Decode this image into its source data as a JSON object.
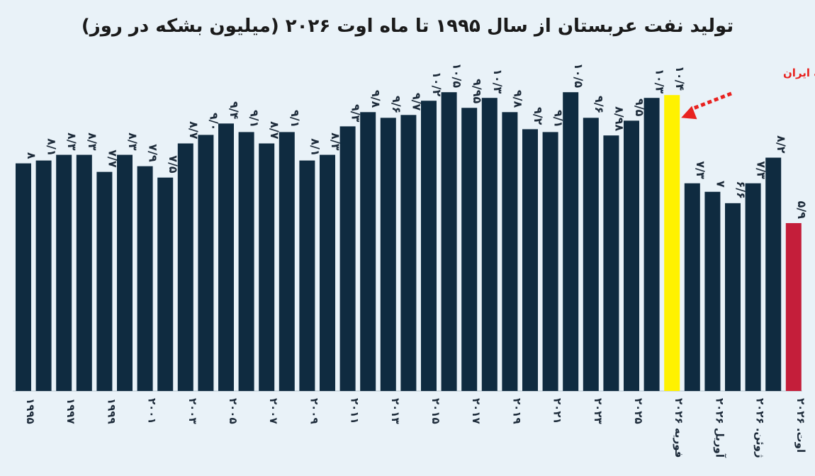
{
  "chart_data": {
    "type": "bar",
    "title": "تولید نفت عربستان از سال ۱۹۹۵ تا ماه اوت ۲۰۲۶ (میلیون بشکه در روز)",
    "xlabel": "",
    "ylabel": "",
    "ylim": [
      0,
      11
    ],
    "grid": false,
    "colors": {
      "default": "#0f2b40",
      "highlight": "#fff200",
      "latest": "#c41e3a"
    },
    "categories": [
      {
        "x": "۱۹۹۵",
        "value": 8.0,
        "value_label": "۸",
        "axis_label": "۱۹۹۵",
        "color_role": "default"
      },
      {
        "x": "1996",
        "value": 8.1,
        "value_label": "۸/۱",
        "axis_label": "",
        "color_role": "default"
      },
      {
        "x": "۱۹۹۷",
        "value": 8.3,
        "value_label": "۸/۳",
        "axis_label": "۱۹۹۷",
        "color_role": "default"
      },
      {
        "x": "1998",
        "value": 8.3,
        "value_label": "۸/۳",
        "axis_label": "",
        "color_role": "default"
      },
      {
        "x": "۱۹۹۹",
        "value": 7.7,
        "value_label": "۷/۷",
        "axis_label": "۱۹۹۹",
        "color_role": "default"
      },
      {
        "x": "2000",
        "value": 8.3,
        "value_label": "۸/۳",
        "axis_label": "",
        "color_role": "default"
      },
      {
        "x": "۲۰۰۱",
        "value": 7.9,
        "value_label": "۷/۹",
        "axis_label": "۲۰۰۱",
        "color_role": "default"
      },
      {
        "x": "2002",
        "value": 7.5,
        "value_label": "۷/۵",
        "axis_label": "",
        "color_role": "default"
      },
      {
        "x": "۲۰۰۳",
        "value": 8.7,
        "value_label": "۸/۷",
        "axis_label": "۲۰۰۳",
        "color_role": "default"
      },
      {
        "x": "2004",
        "value": 9.0,
        "value_label": "۹/۰",
        "axis_label": "",
        "color_role": "default"
      },
      {
        "x": "۲۰۰۵",
        "value": 9.4,
        "value_label": "۹/۴",
        "axis_label": "۲۰۰۵",
        "color_role": "default"
      },
      {
        "x": "2006",
        "value": 9.1,
        "value_label": "۹/۱",
        "axis_label": "",
        "color_role": "default"
      },
      {
        "x": "۲۰۰۷",
        "value": 8.7,
        "value_label": "۸/۷",
        "axis_label": "۲۰۰۷",
        "color_role": "default"
      },
      {
        "x": "2008",
        "value": 9.1,
        "value_label": "۹/۱",
        "axis_label": "",
        "color_role": "default"
      },
      {
        "x": "۲۰۰۹",
        "value": 8.1,
        "value_label": "۸/۱",
        "axis_label": "۲۰۰۹",
        "color_role": "default"
      },
      {
        "x": "2010",
        "value": 8.3,
        "value_label": "۸/۳",
        "axis_label": "",
        "color_role": "default"
      },
      {
        "x": "۲۰۱۱",
        "value": 9.3,
        "value_label": "۹/۳",
        "axis_label": "۲۰۱۱",
        "color_role": "default"
      },
      {
        "x": "2012",
        "value": 9.8,
        "value_label": "۹/۸",
        "axis_label": "",
        "color_role": "default"
      },
      {
        "x": "۲۰۱۳",
        "value": 9.6,
        "value_label": "۹/۶",
        "axis_label": "۲۰۱۳",
        "color_role": "default"
      },
      {
        "x": "2014",
        "value": 9.7,
        "value_label": "۹/۷",
        "axis_label": "",
        "color_role": "default"
      },
      {
        "x": "۲۰۱۵",
        "value": 10.2,
        "value_label": "۱۰/۲",
        "axis_label": "۲۰۱۵",
        "color_role": "default"
      },
      {
        "x": "2016",
        "value": 10.5,
        "value_label": "۱۰/۵",
        "axis_label": "",
        "color_role": "default"
      },
      {
        "x": "۲۰۱۷",
        "value": 9.95,
        "value_label": "۹/۹۵",
        "axis_label": "۲۰۱۷",
        "color_role": "default"
      },
      {
        "x": "2018",
        "value": 10.3,
        "value_label": "۱۰/۳",
        "axis_label": "",
        "color_role": "default"
      },
      {
        "x": "۲۰۱۹",
        "value": 9.8,
        "value_label": "۹/۸",
        "axis_label": "۲۰۱۹",
        "color_role": "default"
      },
      {
        "x": "2020",
        "value": 9.2,
        "value_label": "۹/۲",
        "axis_label": "",
        "color_role": "default"
      },
      {
        "x": "۲۰۲۱",
        "value": 9.1,
        "value_label": "۹/۱",
        "axis_label": "۲۰۲۱",
        "color_role": "default"
      },
      {
        "x": "2022",
        "value": 10.5,
        "value_label": "۱۰/۵",
        "axis_label": "",
        "color_role": "default"
      },
      {
        "x": "۲۰۲۳",
        "value": 9.6,
        "value_label": "۹/۶",
        "axis_label": "۲۰۲۳",
        "color_role": "default"
      },
      {
        "x": "2024",
        "value": 8.98,
        "value_label": "۸/۹۸",
        "axis_label": "",
        "color_role": "default"
      },
      {
        "x": "۲۰۲۵",
        "value": 9.5,
        "value_label": "۹/۵",
        "axis_label": "۲۰۲۵",
        "color_role": "default"
      },
      {
        "x": "2025b",
        "value": 10.3,
        "value_label": "۱۰/۳",
        "axis_label": "",
        "color_role": "default"
      },
      {
        "x": "فوریه ۲۰۲۶",
        "value": 10.4,
        "value_label": "۱۰/۴",
        "axis_label": "فوریه ۲۰۲۶",
        "color_role": "highlight"
      },
      {
        "x": "m1",
        "value": 7.3,
        "value_label": "۷/۳",
        "axis_label": "",
        "color_role": "default"
      },
      {
        "x": "آوریل ۲۰۲۶",
        "value": 7.0,
        "value_label": "۷",
        "axis_label": "آوریل ۲۰۲۶",
        "color_role": "default"
      },
      {
        "x": "m2",
        "value": 6.6,
        "value_label": "۶/۶",
        "axis_label": "",
        "color_role": "default"
      },
      {
        "x": "ژوئن. ۲۰۲۶",
        "value": 7.3,
        "value_label": "۷/۳",
        "axis_label": "ژوئن. ۲۰۲۶",
        "color_role": "default"
      },
      {
        "x": "m3",
        "value": 8.2,
        "value_label": "۸/۲",
        "axis_label": "",
        "color_role": "default"
      },
      {
        "x": "اوت. ۲۰۲۶",
        "value": 5.9,
        "value_label": "۵/۹",
        "axis_label": "اوت. ۲۰۲۶",
        "color_role": "latest"
      }
    ],
    "annotations": [
      {
        "text": "شروع جنگ ایران",
        "target": "فوریه ۲۰۲۶",
        "color": "#e8221f"
      }
    ]
  }
}
